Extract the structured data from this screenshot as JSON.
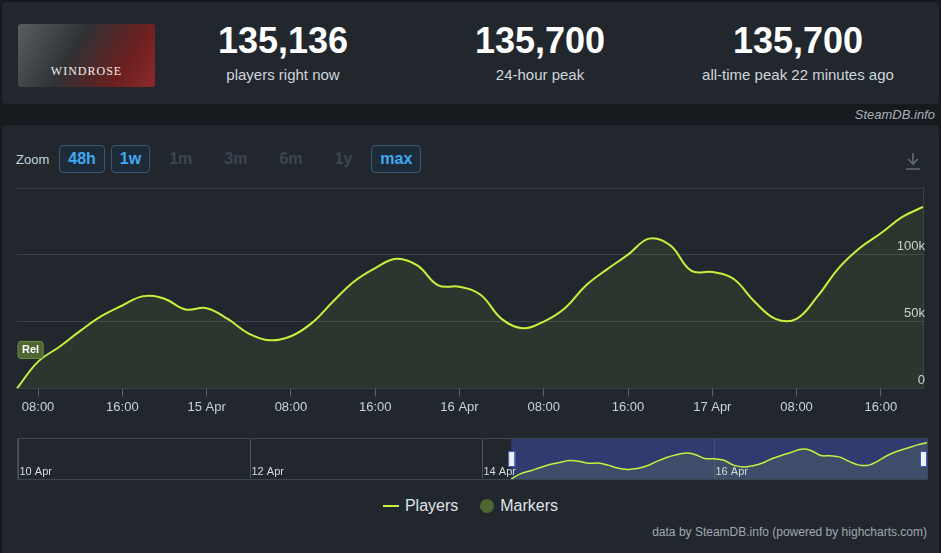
{
  "header": {
    "image_text": "WINDROSE",
    "stats": [
      {
        "value": "135,136",
        "label": "players right now"
      },
      {
        "value": "135,700",
        "label": "24-hour peak"
      },
      {
        "value": "135,700",
        "label": "all-time peak 22 minutes ago"
      }
    ],
    "source": "SteamDB.info"
  },
  "zoom": {
    "label": "Zoom",
    "options": [
      {
        "text": "48h",
        "active": true
      },
      {
        "text": "1w",
        "active": true
      },
      {
        "text": "1m",
        "active": false
      },
      {
        "text": "3m",
        "active": false
      },
      {
        "text": "6m",
        "active": false
      },
      {
        "text": "1y",
        "active": false
      },
      {
        "text": "max",
        "active": true
      }
    ]
  },
  "chart_data": {
    "type": "line",
    "categories": [
      null,
      "08:00",
      null,
      null,
      null,
      "16:00",
      null,
      null,
      null,
      "15 Apr",
      null,
      null,
      null,
      "08:00",
      null,
      null,
      null,
      "16:00",
      null,
      null,
      null,
      "16 Apr",
      null,
      null,
      null,
      "08:00",
      null,
      null,
      null,
      "16:00",
      null,
      null,
      null,
      "17 Apr",
      null,
      null,
      null,
      "08:00",
      null,
      null,
      null,
      "16:00",
      null,
      null
    ],
    "series": [
      {
        "name": "Players",
        "color": "#c8f03c",
        "values": [
          0,
          20000,
          31000,
          43000,
          54000,
          62000,
          69000,
          67000,
          59000,
          60000,
          52000,
          41000,
          36000,
          39000,
          49000,
          65000,
          80000,
          90000,
          97000,
          92000,
          77000,
          76000,
          70000,
          52000,
          45000,
          50000,
          60000,
          77000,
          89000,
          100000,
          112000,
          107000,
          88000,
          87000,
          82000,
          65000,
          52000,
          52000,
          69000,
          90000,
          105000,
          116000,
          128000,
          135700
        ]
      }
    ],
    "markers": {
      "name": "Markers",
      "color": "#4e6632",
      "items": [
        {
          "text": "Rel",
          "at": 0
        }
      ]
    },
    "ylim": [
      0,
      150000
    ],
    "yticks": [
      0,
      {
        "value": 50000,
        "label": "50k"
      },
      {
        "value": 100000,
        "label": "100k"
      }
    ],
    "grid": true,
    "legend": "bottom",
    "navigator": {
      "categories": [
        "10 Apr",
        null,
        null,
        null,
        null,
        null,
        null,
        null,
        null,
        null,
        null,
        null,
        null,
        null,
        null,
        null,
        null,
        null,
        null,
        null,
        null,
        null,
        null,
        null,
        "12 Apr",
        null,
        null,
        null,
        null,
        null,
        null,
        null,
        null,
        null,
        null,
        null,
        null,
        null,
        null,
        null,
        null,
        null,
        null,
        null,
        null,
        null,
        null,
        null,
        "14 Apr",
        null,
        null,
        null,
        null,
        null,
        null,
        null,
        null,
        null,
        null,
        null,
        null,
        null,
        null,
        null,
        null,
        null,
        null,
        null,
        null,
        null,
        null,
        null,
        "16 Apr",
        null,
        null,
        null,
        null,
        null,
        null,
        null,
        null,
        null,
        null,
        null,
        null,
        null,
        null,
        null,
        null,
        null,
        null,
        null,
        null,
        null,
        null
      ]
    }
  },
  "credit": "data by SteamDB.info (powered by highcharts.com)"
}
